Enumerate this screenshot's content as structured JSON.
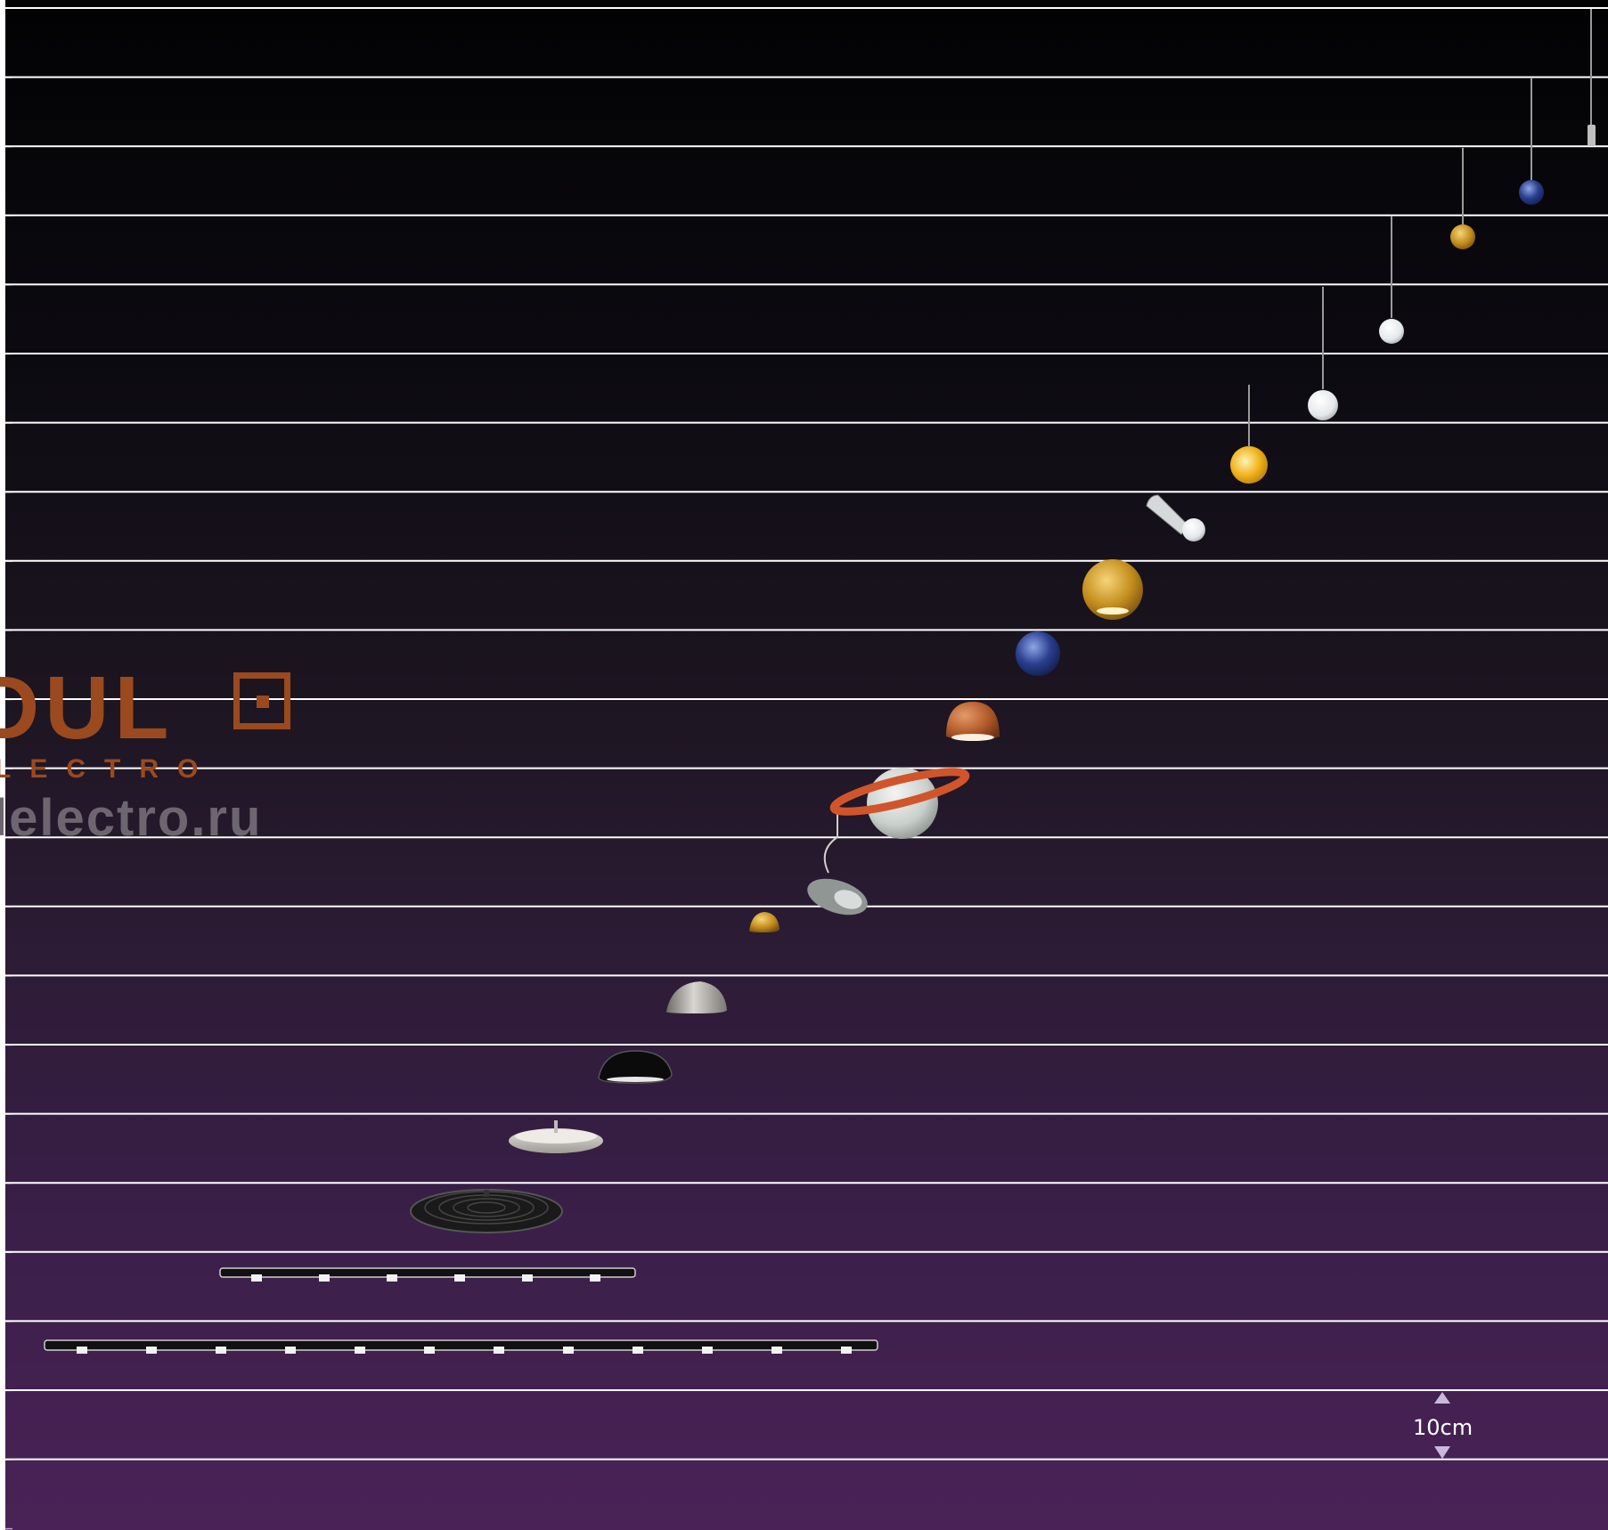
{
  "logo": {
    "brand_text": "DUL",
    "brand_sub": "LECTRO",
    "url": "lelectro.ru"
  },
  "scale": {
    "label": "10cm"
  },
  "colors": {
    "line": "#ffffff",
    "logo_brown": "#9a4a1e",
    "logo_grey": "#6d6670",
    "background_top": "#020203",
    "background_bottom": "#4a2257"
  },
  "lamps": [
    {
      "name": "long-track-light",
      "type": "track",
      "spots": 12
    },
    {
      "name": "short-track-light",
      "type": "track",
      "spots": 6
    },
    {
      "name": "black-disc-pendant",
      "type": "disc",
      "color": "#1a1a1a"
    },
    {
      "name": "white-disc-pendant",
      "type": "disc",
      "color": "#c9c6c1"
    },
    {
      "name": "black-dome-pendant",
      "type": "dome",
      "color": "#0b0b0b"
    },
    {
      "name": "silver-dome-pendant",
      "type": "dome",
      "color": "#a8a39c"
    },
    {
      "name": "small-gold-dome",
      "type": "dome",
      "color": "#c98a22"
    },
    {
      "name": "silver-swivel-spot",
      "type": "swivel",
      "color": "#8f9693"
    },
    {
      "name": "saturn-ring-pendant",
      "type": "saturn",
      "color": "#c9d0cc",
      "ring": "#d1552a"
    },
    {
      "name": "copper-globe-pendant",
      "type": "globe",
      "color": "#b25a2a"
    },
    {
      "name": "blue-globe-pendant",
      "type": "globe",
      "color": "#2a3f8f"
    },
    {
      "name": "large-gold-globe",
      "type": "globe",
      "color": "#c48d1c"
    },
    {
      "name": "white-angled-spot",
      "type": "angled",
      "color": "#e3e5e6"
    },
    {
      "name": "yellow-ball-pendant",
      "type": "bulb",
      "color": "#f2b31d"
    },
    {
      "name": "frosted-ball-pendant",
      "type": "bulb",
      "color": "#eef0f1"
    },
    {
      "name": "small-frosted-pendant",
      "type": "bulb",
      "color": "#dfe7e6"
    },
    {
      "name": "gold-drop-pendant",
      "type": "bulb",
      "color": "#d79a1e"
    },
    {
      "name": "blue-drop-pendant",
      "type": "bulb",
      "color": "#233f8a"
    },
    {
      "name": "silver-cylinder-pendant",
      "type": "cylinder",
      "color": "#bfbfbf"
    }
  ]
}
